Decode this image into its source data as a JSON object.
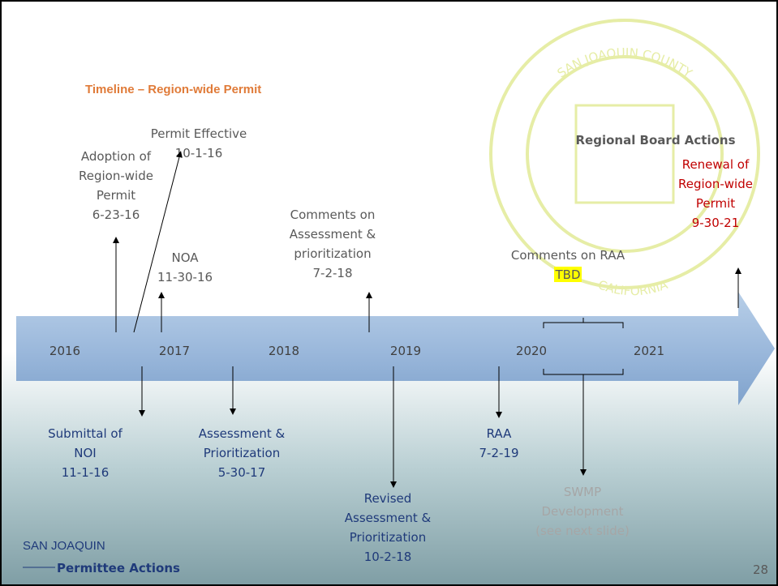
{
  "title": "Timeline – Region-wide Permit",
  "years": [
    "2016",
    "2017",
    "2018",
    "2019",
    "2020",
    "2021"
  ],
  "regional_header": "Regional Board Actions",
  "above": [
    {
      "lines": [
        "Adoption of",
        "Region-wide",
        "Permit",
        "6-23-16"
      ]
    },
    {
      "lines": [
        "Permit Effective",
        "10-1-16"
      ]
    },
    {
      "lines": [
        "NOA",
        "11-30-16"
      ]
    },
    {
      "lines": [
        "Comments on",
        "Assessment &",
        "prioritization",
        "7-2-18"
      ]
    },
    {
      "lines": [
        "Comments on RAA",
        "TBD"
      ]
    },
    {
      "lines": [
        "Renewal of",
        "Region-wide",
        "Permit",
        "9-30-21"
      ]
    }
  ],
  "below": [
    {
      "lines": [
        "Submittal of",
        "NOI",
        "11-1-16"
      ]
    },
    {
      "lines": [
        "Assessment &",
        "Prioritization",
        "5-30-17"
      ]
    },
    {
      "lines": [
        "Revised",
        "Assessment &",
        "Prioritization",
        "10-2-18"
      ]
    },
    {
      "lines": [
        "RAA",
        "7-2-19"
      ]
    },
    {
      "lines": [
        "SWMP",
        "Development",
        "(see next slide)"
      ]
    }
  ],
  "seal": {
    "top": "SAN JOAQUIN COUNTY",
    "bottom": "CALIFORNIA"
  },
  "footer": {
    "logo": "SAN JOAQUIN",
    "label": "Permittee Actions",
    "page": "28"
  }
}
